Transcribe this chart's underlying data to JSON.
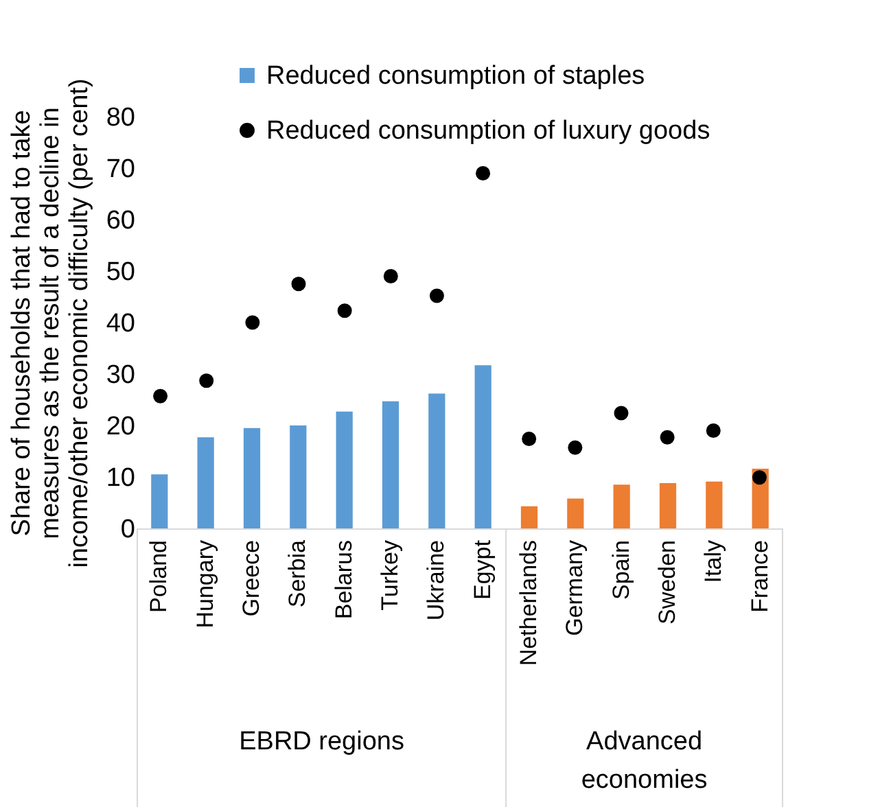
{
  "chart_data": {
    "type": "bar",
    "ylabel": "Share of households that had to take measures as the result of a decline in income/other economic difficulty (per cent)",
    "categories": [
      "Poland",
      "Hungary",
      "Greece",
      "Serbia",
      "Belarus",
      "Turkey",
      "Ukraine",
      "Egypt",
      "Netherlands",
      "Germany",
      "Spain",
      "Sweden",
      "Italy",
      "France"
    ],
    "series": [
      {
        "name": "Reduced consumption of staples",
        "color": "#5b9bd5",
        "colors": [
          "#5b9bd5",
          "#5b9bd5",
          "#5b9bd5",
          "#5b9bd5",
          "#5b9bd5",
          "#5b9bd5",
          "#5b9bd5",
          "#5b9bd5",
          "#ed7d31",
          "#ed7d31",
          "#ed7d31",
          "#ed7d31",
          "#ed7d31",
          "#ed7d31"
        ],
        "values": [
          10.5,
          17.7,
          19.5,
          20,
          22.7,
          24.7,
          26.2,
          31.7,
          4.3,
          5.8,
          8.5,
          8.8,
          9.1,
          11.6
        ]
      },
      {
        "name": "Reduced consumption of luxury goods",
        "type": "scatter",
        "color": "#000000",
        "marker": "circle",
        "values": [
          25.7,
          28.7,
          40,
          47.5,
          42.3,
          49,
          45.2,
          69,
          17.4,
          15.7,
          22.4,
          17.7,
          19,
          9.9
        ]
      }
    ],
    "annotations": [
      "EBRD regions",
      "Advanced economies"
    ],
    "ylim": [
      0,
      80
    ],
    "yticks": [
      0,
      10,
      20,
      30,
      40,
      50,
      60,
      70,
      80
    ],
    "grid": false,
    "legend": "top"
  }
}
